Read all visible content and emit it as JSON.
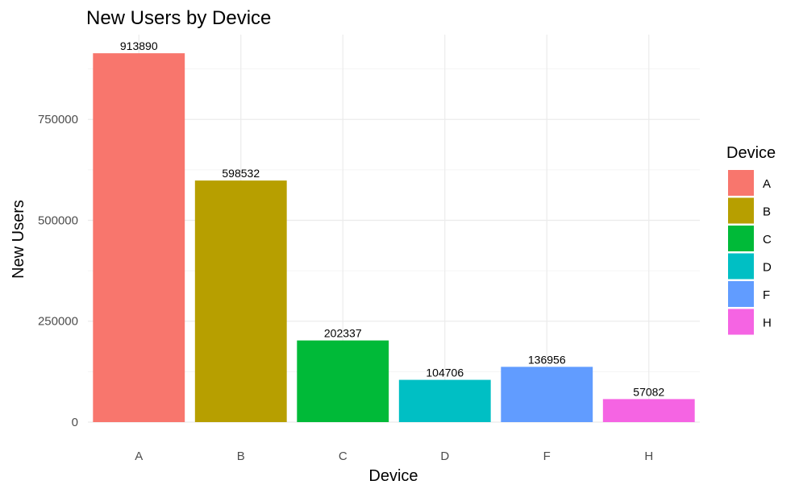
{
  "chart_data": {
    "type": "bar",
    "title": "New Users by Device",
    "xlabel": "Device",
    "ylabel": "New Users",
    "categories": [
      "A",
      "B",
      "C",
      "D",
      "F",
      "H"
    ],
    "values": [
      913890,
      598532,
      202337,
      104706,
      136956,
      57082
    ],
    "data_labels": [
      "913890",
      "598532",
      "202337",
      "104706",
      "136956",
      "57082"
    ],
    "colors": [
      "#F8766D",
      "#B79F00",
      "#00BA38",
      "#00BFC4",
      "#619CFF",
      "#F564E3"
    ],
    "ylim": [
      0,
      960000
    ],
    "yticks": [
      0,
      250000,
      500000,
      750000
    ],
    "ytick_labels": [
      "0",
      "250000",
      "500000",
      "750000"
    ],
    "grid": true,
    "legend": {
      "title": "Device",
      "position": "right",
      "entries": [
        "A",
        "B",
        "C",
        "D",
        "F",
        "H"
      ]
    }
  }
}
